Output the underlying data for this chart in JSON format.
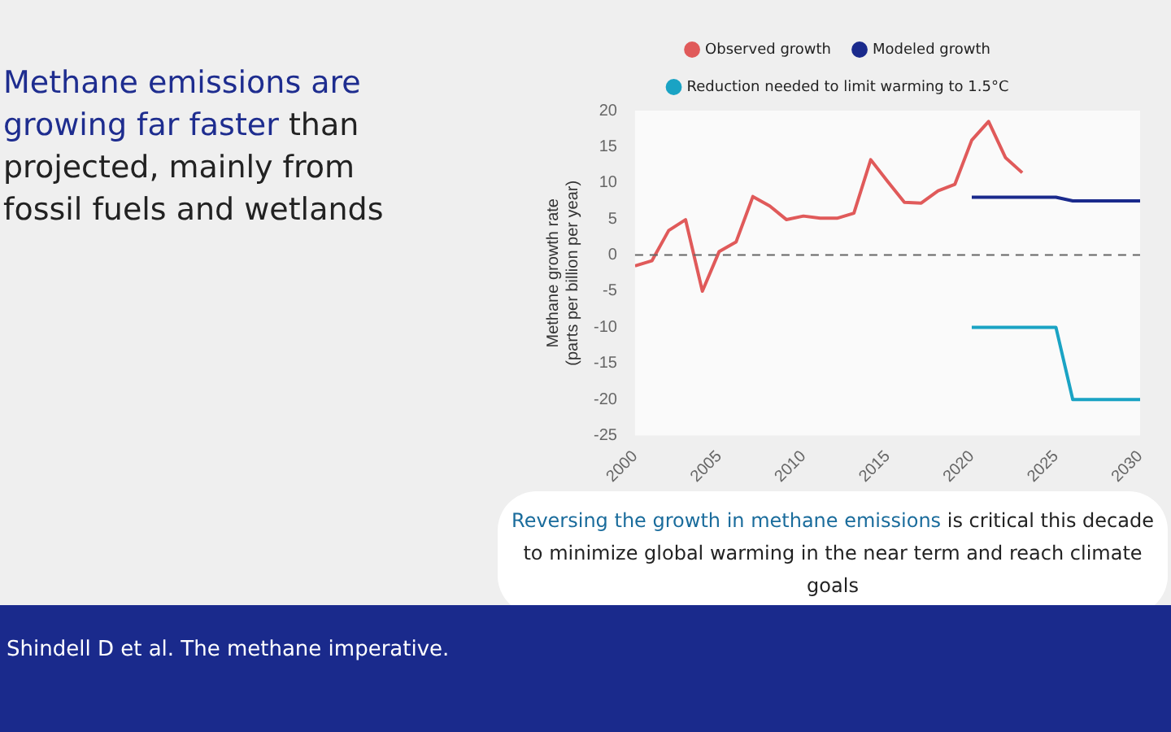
{
  "chart_data": {
    "type": "line",
    "title": "Methane emissions are growing far faster",
    "subtitle": "than projected, mainly from fossil fuels and wetlands",
    "ylabel": "Methane growth rate\n(parts per billion per year)",
    "annotations": [
      "Reversing the growth in methane emissions",
      "is critical this decade to minimize global warming in the near term and reach climate goals",
      "Shindell D et al. The methane imperative."
    ],
    "xlim": [
      2000,
      2030
    ],
    "xticks": [
      2000,
      2005,
      2010,
      2015,
      2020,
      2025,
      2030
    ],
    "ylim": [
      -25,
      20
    ],
    "yticks": [
      -25,
      -20,
      -15,
      -10,
      -5,
      0,
      5,
      10,
      15,
      20
    ],
    "series": [
      {
        "name": "Observed growth",
        "color": "#e05a5a",
        "x": [
          2000,
          2001,
          2002,
          2003,
          2004,
          2005,
          2006,
          2007,
          2008,
          2009,
          2010,
          2011,
          2012,
          2013,
          2014,
          2015,
          2016,
          2017,
          2018,
          2019,
          2020,
          2021,
          2022,
          2023
        ],
        "values": [
          -1.5,
          -0.8,
          3.4,
          4.9,
          -5,
          0.5,
          1.8,
          8.1,
          6.8,
          4.9,
          5.4,
          5.1,
          5.1,
          5.8,
          13.2,
          10.2,
          7.3,
          7.2,
          8.9,
          9.8,
          15.9,
          18.5,
          13.5,
          11.4
        ]
      },
      {
        "name": "Modeled growth",
        "color": "#1a2a8c",
        "x": [
          2020,
          2025,
          2026,
          2030
        ],
        "values": [
          8,
          8,
          7.5,
          7.5
        ]
      },
      {
        "name": "Reduction needed to limit warming to 1.5°C",
        "color": "#1aa3c4",
        "x": [
          2020,
          2025,
          2026,
          2030
        ],
        "values": [
          -10,
          -10,
          -20,
          -20
        ]
      }
    ],
    "ref_lines": [
      {
        "axis": "y",
        "value": 0,
        "color": "#666666",
        "line_style": "dashed"
      }
    ],
    "grid": false,
    "legend": "top",
    "marker": "none",
    "line_style": "solid"
  }
}
